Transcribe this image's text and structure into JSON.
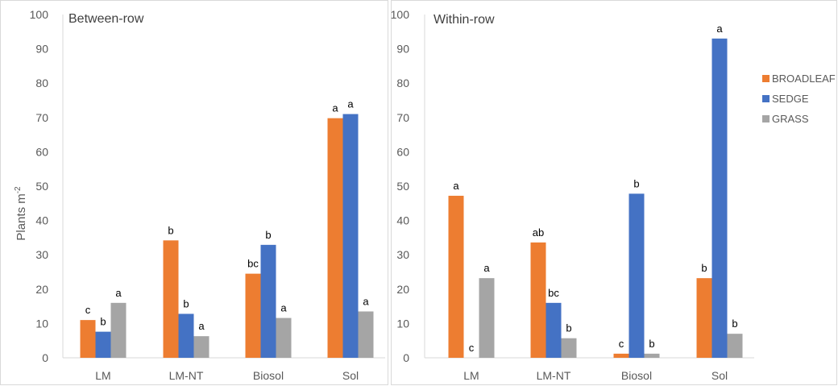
{
  "colors": {
    "BROADLEAF": "#ED7D31",
    "SEDGE": "#4472C4",
    "GRASS": "#A5A5A5"
  },
  "legend": [
    "BROADLEAF",
    "SEDGE",
    "GRASS"
  ],
  "chart_data": [
    {
      "type": "bar",
      "title": "Between-row",
      "ylabel": "Plants m",
      "ylabel_superscript": "-2",
      "ylim": [
        0,
        100
      ],
      "yticks": [
        "0",
        "10",
        "20",
        "30",
        "40",
        "50",
        "60",
        "70",
        "80",
        "90",
        "100"
      ],
      "categories": [
        "LM",
        "LM-NT",
        "Biosol",
        "Sol"
      ],
      "series": [
        {
          "name": "BROADLEAF",
          "values": [
            11,
            34.2,
            24.5,
            69.8
          ],
          "labels": [
            "c",
            "b",
            "bc",
            "a"
          ]
        },
        {
          "name": "SEDGE",
          "values": [
            7.6,
            12.8,
            32.9,
            71
          ],
          "labels": [
            "b",
            "b",
            "b",
            "a"
          ]
        },
        {
          "name": "GRASS",
          "values": [
            16,
            6.3,
            11.6,
            13.5
          ],
          "labels": [
            "a",
            "a",
            "a",
            "a"
          ]
        }
      ]
    },
    {
      "type": "bar",
      "title": "Within-row",
      "ylim": [
        0,
        100
      ],
      "yticks": [
        "0",
        "10",
        "20",
        "30",
        "40",
        "50",
        "60",
        "70",
        "80",
        "90",
        "100"
      ],
      "categories": [
        "LM",
        "LM-NT",
        "Biosol",
        "Sol"
      ],
      "legend_position": "right",
      "series": [
        {
          "name": "BROADLEAF",
          "values": [
            47.2,
            33.6,
            1.2,
            23.2
          ],
          "labels": [
            "a",
            "ab",
            "c",
            "b"
          ]
        },
        {
          "name": "SEDGE",
          "values": [
            0,
            16,
            47.8,
            93
          ],
          "labels": [
            "c",
            "bc",
            "b",
            "a"
          ]
        },
        {
          "name": "GRASS",
          "values": [
            23.2,
            5.7,
            1.2,
            7
          ],
          "labels": [
            "a",
            "b",
            "b",
            "b"
          ]
        }
      ]
    }
  ]
}
